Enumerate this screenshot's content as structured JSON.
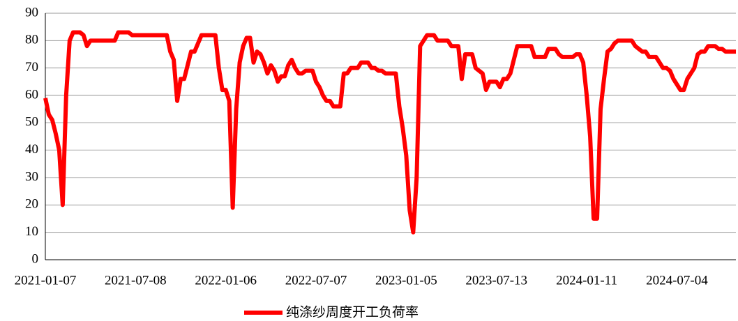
{
  "chart_data": {
    "type": "line",
    "categories": [
      "2021-01-07",
      null,
      null,
      null,
      null,
      null,
      null,
      null,
      null,
      null,
      null,
      null,
      null,
      null,
      null,
      null,
      null,
      null,
      null,
      null,
      null,
      null,
      null,
      null,
      null,
      null,
      "2021-07-08",
      null,
      null,
      null,
      null,
      null,
      null,
      null,
      null,
      null,
      null,
      null,
      null,
      null,
      null,
      null,
      null,
      null,
      null,
      null,
      null,
      null,
      null,
      null,
      null,
      null,
      "2022-01-06",
      null,
      null,
      null,
      null,
      null,
      null,
      null,
      null,
      null,
      null,
      null,
      null,
      null,
      null,
      null,
      null,
      null,
      null,
      null,
      null,
      null,
      null,
      null,
      null,
      null,
      "2022-07-07",
      null,
      null,
      null,
      null,
      null,
      null,
      null,
      null,
      null,
      null,
      null,
      null,
      null,
      null,
      null,
      null,
      null,
      null,
      null,
      null,
      null,
      null,
      null,
      null,
      null,
      "2023-01-05",
      null,
      null,
      null,
      null,
      null,
      null,
      null,
      null,
      null,
      null,
      null,
      null,
      null,
      null,
      null,
      null,
      null,
      null,
      null,
      null,
      null,
      null,
      null,
      null,
      null,
      "2023-07-13",
      null,
      null,
      null,
      null,
      null,
      null,
      null,
      null,
      null,
      null,
      null,
      null,
      null,
      null,
      null,
      null,
      null,
      null,
      null,
      null,
      null,
      null,
      null,
      null,
      null,
      "2024-01-11",
      null,
      null,
      null,
      null,
      null,
      null,
      null,
      null,
      null,
      null,
      null,
      null,
      null,
      null,
      null,
      null,
      null,
      null,
      null,
      null,
      null,
      null,
      null,
      null,
      null,
      "2024-07-04",
      null,
      null,
      null,
      null,
      null,
      null,
      null,
      null,
      null,
      null,
      null,
      null,
      null,
      null,
      null,
      null,
      null
    ],
    "series": [
      {
        "name": "纯涤纱周度开工负荷率",
        "color": "#ff0000",
        "values": [
          59,
          53,
          51,
          46,
          40,
          20,
          60,
          80,
          83,
          83,
          83,
          82,
          78,
          80,
          80,
          80,
          80,
          80,
          80,
          80,
          80,
          83,
          83,
          83,
          83,
          82,
          82,
          82,
          82,
          82,
          82,
          82,
          82,
          82,
          82,
          82,
          76,
          73,
          58,
          66,
          66,
          71,
          76,
          76,
          79,
          82,
          82,
          82,
          82,
          82,
          70,
          62,
          62,
          58,
          19,
          55,
          72,
          78,
          81,
          81,
          72,
          76,
          75,
          72,
          68,
          71,
          69,
          65,
          67,
          67,
          71,
          73,
          70,
          68,
          68,
          69,
          69,
          69,
          65,
          63,
          60,
          58,
          58,
          56,
          56,
          56,
          68,
          68,
          70,
          70,
          70,
          72,
          72,
          72,
          70,
          70,
          69,
          69,
          68,
          68,
          68,
          68,
          56,
          48,
          38,
          18,
          10,
          30,
          78,
          80,
          82,
          82,
          82,
          80,
          80,
          80,
          80,
          78,
          78,
          78,
          66,
          75,
          75,
          75,
          70,
          69,
          68,
          62,
          65,
          65,
          65,
          63,
          66,
          66,
          68,
          73,
          78,
          78,
          78,
          78,
          78,
          74,
          74,
          74,
          74,
          77,
          77,
          77,
          75,
          74,
          74,
          74,
          74,
          75,
          75,
          72,
          60,
          45,
          15,
          15,
          55,
          66,
          76,
          77,
          79,
          80,
          80,
          80,
          80,
          80,
          78,
          77,
          76,
          76,
          74,
          74,
          74,
          72,
          70,
          70,
          69,
          66,
          64,
          62,
          62,
          66,
          68,
          70,
          75,
          76,
          76,
          78,
          78,
          78,
          77,
          77,
          76,
          76,
          76,
          76
        ]
      }
    ],
    "ylim": [
      0,
      90
    ],
    "yticks": [
      0,
      10,
      20,
      30,
      40,
      50,
      60,
      70,
      80,
      90
    ],
    "grid": true,
    "legend": "bottom"
  }
}
